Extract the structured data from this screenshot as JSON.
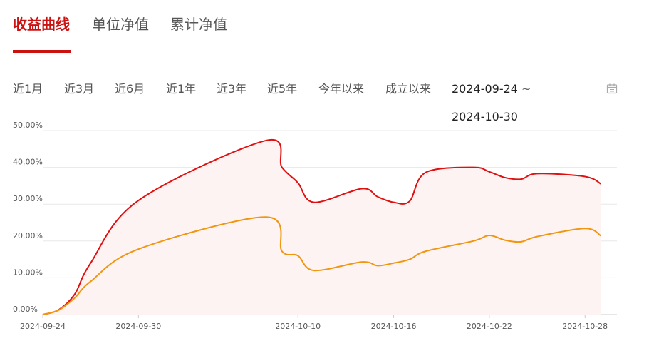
{
  "tabs": [
    {
      "label": "收益曲线",
      "active": true
    },
    {
      "label": "单位净值",
      "active": false
    },
    {
      "label": "累计净值",
      "active": false
    }
  ],
  "periods": [
    "近1月",
    "近3月",
    "近6月",
    "近1年",
    "近3年",
    "近5年",
    "今年以来",
    "成立以来"
  ],
  "date_range": {
    "start": "2024-09-24",
    "separator": "~",
    "end": "2024-10-30",
    "icon": "calendar-icon"
  },
  "colors": {
    "accent": "#cc1111",
    "series_red": "#e01010",
    "series_orange": "#f0960f",
    "area_fill": "#fdf3f3",
    "grid": "#e8e8e8"
  },
  "chart_data": {
    "type": "line",
    "title": "",
    "xlabel": "",
    "ylabel": "",
    "ylim": [
      0,
      50
    ],
    "y_ticks": [
      "0.00%",
      "10.00%",
      "20.00%",
      "30.00%",
      "40.00%",
      "50.00%"
    ],
    "x_ticks": [
      "2024-09-24",
      "2024-09-30",
      "2024-10-10",
      "2024-10-16",
      "2024-10-22",
      "2024-10-28"
    ],
    "x": [
      "2024-09-24",
      "2024-09-25",
      "2024-09-26",
      "2024-09-27",
      "2024-09-30",
      "2024-10-08",
      "2024-10-09",
      "2024-10-10",
      "2024-10-11",
      "2024-10-14",
      "2024-10-15",
      "2024-10-16",
      "2024-10-17",
      "2024-10-18",
      "2024-10-21",
      "2024-10-22",
      "2024-10-23",
      "2024-10-24",
      "2024-10-25",
      "2024-10-28",
      "2024-10-29"
    ],
    "grid": true,
    "series": [
      {
        "color": "#e01010",
        "fill": true,
        "values": [
          0,
          1.3,
          5.5,
          14,
          31,
          47.3,
          40,
          35.8,
          30.5,
          34.2,
          32,
          30.5,
          30.8,
          38.6,
          40,
          38.8,
          37.2,
          36.8,
          38.3,
          37.5,
          35.5
        ]
      },
      {
        "color": "#f0960f",
        "fill": false,
        "values": [
          0,
          1.2,
          4.5,
          9,
          17.8,
          26.5,
          17.2,
          16,
          12,
          14.3,
          13.3,
          14,
          15,
          17.2,
          20,
          21.5,
          20.2,
          19.8,
          21.2,
          23.4,
          21.4
        ]
      }
    ]
  }
}
